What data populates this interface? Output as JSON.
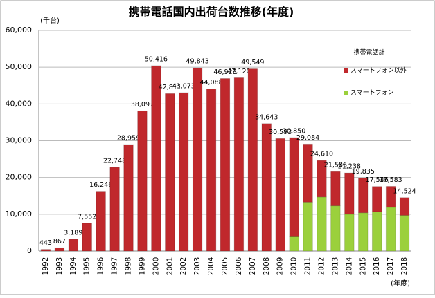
{
  "chart_data": {
    "type": "stacked_bar",
    "title": "携帯電話国内出荷台数推移(年度)",
    "y_unit_label": "(千台)",
    "x_unit_label": "(年度)",
    "legend_title": "携帯電話計",
    "categories": [
      "1992",
      "1993",
      "1994",
      "1995",
      "1996",
      "1997",
      "1998",
      "1999",
      "2000",
      "2001",
      "2002",
      "2003",
      "2004",
      "2005",
      "2006",
      "2007",
      "2008",
      "2009",
      "2010",
      "2011",
      "2012",
      "2013",
      "2014",
      "2015",
      "2016",
      "2017",
      "2018"
    ],
    "series": [
      {
        "name": "スマートフォン以外",
        "color": "#c0282c",
        "values": [
          443,
          867,
          3189,
          7552,
          16246,
          22748,
          28959,
          38097,
          50416,
          42811,
          43073,
          49843,
          44088,
          46923,
          47120,
          49549,
          34643,
          30593,
          26990,
          15784,
          9910,
          9286,
          11238,
          9435,
          6846,
          5683,
          4824
        ]
      },
      {
        "name": "スマートフォン",
        "color": "#9bd03c",
        "values": [
          null,
          null,
          null,
          null,
          null,
          null,
          null,
          null,
          null,
          null,
          null,
          null,
          null,
          null,
          null,
          null,
          null,
          null,
          3860,
          13300,
          14700,
          12300,
          10000,
          10400,
          10700,
          11900,
          9700
        ]
      }
    ],
    "totals": {
      "values": [
        443,
        867,
        3189,
        7552,
        16246,
        22748,
        28959,
        38097,
        50416,
        42811,
        43073,
        49843,
        44088,
        46923,
        47120,
        49549,
        34643,
        30593,
        30850,
        29084,
        24610,
        21586,
        21238,
        19835,
        17546,
        17583,
        14524
      ],
      "value_labels": [
        "443",
        "867",
        "3,189",
        "7,552",
        "16,246",
        "22,748",
        "28,959",
        "38,097",
        "50,416",
        "42,811",
        "43,073",
        "49,843",
        "44,088",
        "46,923",
        "47,120",
        "49,549",
        "34,643",
        "30,593",
        "30,850",
        "29,084",
        "24,610",
        "21,586",
        "21,238",
        "19,835",
        "17,546",
        "17,583",
        "14,524"
      ]
    },
    "ylim": [
      0,
      60000
    ],
    "yticks": [
      0,
      {
        "value": 10000,
        "label": "10,000"
      },
      {
        "value": 20000,
        "label": "20,000"
      },
      {
        "value": 30000,
        "label": "30,000"
      },
      {
        "value": 40000,
        "label": "40,000"
      },
      {
        "value": 50000,
        "label": "50,000"
      },
      {
        "value": 60000,
        "label": "60,000"
      }
    ],
    "grid": true,
    "legend": "upper right"
  }
}
